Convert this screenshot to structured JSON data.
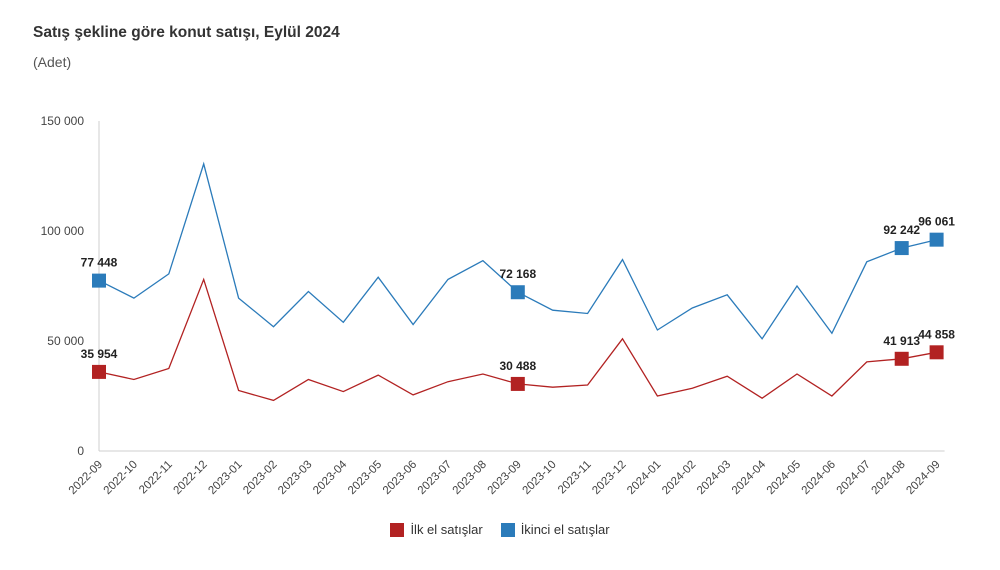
{
  "header": {
    "title": "Satış şekline göre konut satışı, Eylül 2024",
    "subtitle": "(Adet)"
  },
  "chart_data": {
    "type": "line",
    "title": "Satış şekline göre konut satışı, Eylül 2024",
    "ylabel": "(Adet)",
    "xlabel": "",
    "ylim": [
      0,
      150000
    ],
    "yticks": [
      0,
      50000,
      100000,
      150000
    ],
    "ytick_labels": [
      "0",
      "50 000",
      "100 000",
      "150 000"
    ],
    "grid": false,
    "legend_position": "bottom-center",
    "categories": [
      "2022-09",
      "2022-10",
      "2022-11",
      "2022-12",
      "2023-01",
      "2023-02",
      "2023-03",
      "2023-04",
      "2023-05",
      "2023-06",
      "2023-07",
      "2023-08",
      "2023-09",
      "2023-10",
      "2023-11",
      "2023-12",
      "2024-01",
      "2024-02",
      "2024-03",
      "2024-04",
      "2024-05",
      "2024-06",
      "2024-07",
      "2024-08",
      "2024-09"
    ],
    "series": [
      {
        "name": "İlk el satışlar",
        "color": "#b22222",
        "values": [
          35954,
          32500,
          37500,
          78000,
          27500,
          23000,
          32500,
          27000,
          34500,
          25500,
          31500,
          35000,
          30488,
          29000,
          30000,
          51000,
          25000,
          28500,
          34000,
          24000,
          35000,
          25000,
          40500,
          41913,
          44858
        ],
        "labels": [
          {
            "index": 0,
            "text": "35 954"
          },
          {
            "index": 12,
            "text": "30 488"
          },
          {
            "index": 23,
            "text": "41 913"
          },
          {
            "index": 24,
            "text": "44 858"
          }
        ]
      },
      {
        "name": "İkinci el satışlar",
        "color": "#2b7bba",
        "values": [
          77448,
          69500,
          80500,
          130500,
          69500,
          56500,
          72500,
          58500,
          79000,
          57500,
          78000,
          86500,
          72168,
          64000,
          62500,
          87000,
          55000,
          65000,
          71000,
          51000,
          75000,
          53500,
          86000,
          92242,
          96061
        ],
        "labels": [
          {
            "index": 0,
            "text": "77 448"
          },
          {
            "index": 12,
            "text": "72 168"
          },
          {
            "index": 23,
            "text": "92 242"
          },
          {
            "index": 24,
            "text": "96 061"
          }
        ]
      }
    ]
  }
}
